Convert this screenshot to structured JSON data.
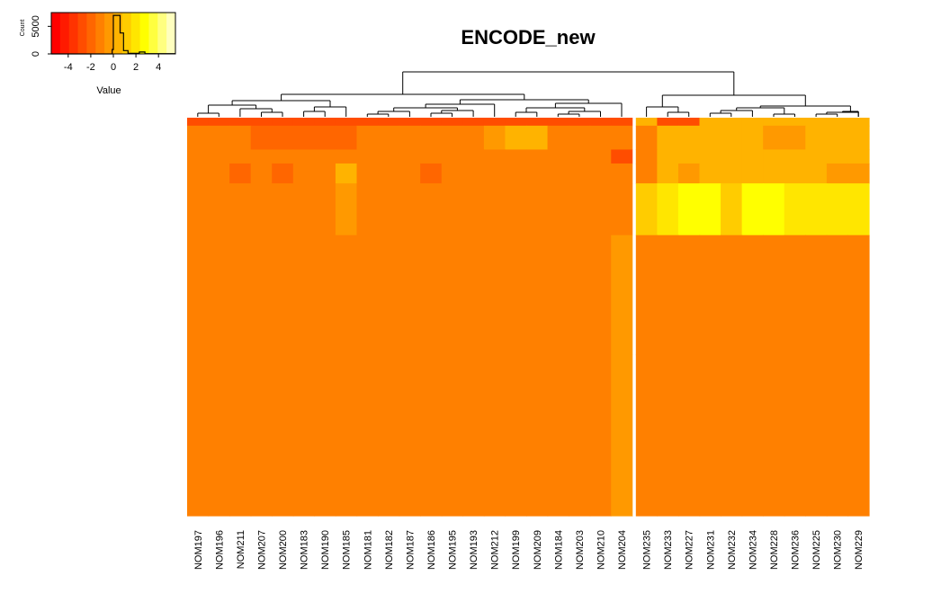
{
  "chart_data": {
    "type": "heatmap",
    "title": "ENCODE_new",
    "columns": [
      "NOM197",
      "NOM196",
      "NOM211",
      "NOM207",
      "NOM200",
      "NOM183",
      "NOM190",
      "NOM185",
      "NOM181",
      "NOM182",
      "NOM187",
      "NOM186",
      "NOM195",
      "NOM193",
      "NOM212",
      "NOM199",
      "NOM209",
      "NOM184",
      "NOM203",
      "NOM210",
      "NOM204",
      "NOM235",
      "NOM233",
      "NOM227",
      "NOM231",
      "NOM232",
      "NOM234",
      "NOM228",
      "NOM236",
      "NOM225",
      "NOM230",
      "NOM229"
    ],
    "column_split_after": "NOM204",
    "color_key": {
      "xlabel": "Value",
      "ylabel": "Count",
      "x_ticks": [
        "-4",
        "-2",
        "0",
        "2",
        "4"
      ],
      "y_ticks": [
        "0",
        "5000"
      ],
      "xlim": [
        -5.5,
        5.5
      ],
      "ylim": [
        0,
        7500
      ],
      "palette": [
        "#ff0000",
        "#ff1a00",
        "#ff3300",
        "#ff4d00",
        "#ff6600",
        "#ff8000",
        "#ff9900",
        "#ffb300",
        "#ffcc00",
        "#ffe600",
        "#ffff00",
        "#ffff40",
        "#ffff80",
        "#ffffbf"
      ],
      "histogram": [
        [
          -5.5,
          0
        ],
        [
          -0.1,
          0
        ],
        [
          -0.1,
          800
        ],
        [
          0,
          800
        ],
        [
          0,
          7000
        ],
        [
          0.6,
          7000
        ],
        [
          0.6,
          3800
        ],
        [
          0.9,
          3800
        ],
        [
          0.9,
          600
        ],
        [
          1.3,
          600
        ],
        [
          1.3,
          100
        ],
        [
          2.3,
          100
        ],
        [
          2.3,
          350
        ],
        [
          2.8,
          350
        ],
        [
          2.8,
          50
        ],
        [
          5.5,
          50
        ]
      ]
    },
    "dendrogram": [
      [
        [
          7.5,
          0.58
        ],
        [
          7.5,
          0.6
        ]
      ],
      [
        [
          6.5,
          0.54
        ],
        [
          6.5,
          0.58
        ]
      ],
      [
        [
          8,
          0.58
        ],
        [
          8,
          0.26
        ]
      ],
      [
        [
          6.5,
          0.54
        ],
        [
          6.5,
          0.42
        ]
      ],
      [
        [
          7,
          0.54
        ],
        [
          7,
          0.34
        ]
      ],
      [
        [
          6,
          0.42
        ],
        [
          6,
          0.32
        ]
      ],
      [
        [
          7,
          0.42
        ],
        [
          7,
          0.14
        ]
      ],
      [
        [
          5.5,
          0.32
        ],
        [
          5.5,
          0.18
        ]
      ],
      [
        [
          6.5,
          0.32
        ],
        [
          6.5,
          0.18
        ]
      ],
      [
        [
          5,
          0.18
        ],
        [
          5,
          0
        ]
      ],
      [
        [
          6,
          0.18
        ],
        [
          6,
          0
        ]
      ],
      [
        [
          6.5,
          0.18
        ],
        [
          6.5,
          0.1
        ]
      ],
      [
        [
          7,
          0.18
        ],
        [
          7,
          0
        ]
      ],
      [
        [
          6,
          0.1
        ],
        [
          6,
          0
        ]
      ],
      [
        [
          7,
          0.1
        ],
        [
          7,
          0
        ]
      ],
      [
        [
          1.5,
          0.46
        ],
        [
          1.5,
          0.58
        ]
      ],
      [
        [
          1.5,
          0.46
        ],
        [
          1.5,
          0.36
        ]
      ],
      [
        [
          2,
          0.46
        ],
        [
          2,
          0.34
        ]
      ],
      [
        [
          1,
          0.36
        ],
        [
          1,
          0.2
        ]
      ],
      [
        [
          3,
          0.36
        ],
        [
          3,
          0.16
        ]
      ],
      [
        [
          0.5,
          0.2
        ],
        [
          0.5,
          0.06
        ]
      ],
      [
        [
          1.5,
          0.2
        ],
        [
          1.5,
          0.06
        ]
      ],
      [
        [
          0,
          0.06
        ],
        [
          0,
          0
        ]
      ],
      [
        [
          1,
          0.06
        ],
        [
          1,
          0
        ]
      ],
      [
        [
          1,
          0.06
        ],
        [
          1,
          0
        ]
      ],
      [
        [
          2,
          0.06
        ],
        [
          2,
          0
        ]
      ],
      [
        [
          4,
          0.34
        ],
        [
          4,
          0.06
        ]
      ],
      [
        [
          3.5,
          0.06
        ],
        [
          3.5,
          0
        ]
      ],
      [
        [
          4.5,
          0.06
        ],
        [
          4.5,
          0
        ]
      ]
    ],
    "values": [
      [
        -3.0,
        -3.0,
        -3.0,
        -3.0,
        -3.0,
        -3.0,
        -3.0,
        -3.0,
        -3.0,
        -3.0,
        -3.0,
        -3.0,
        -3.0,
        -3.0,
        -3.0,
        -3.0,
        -3.0,
        -3.0,
        -3.0,
        -3.0,
        -3.0,
        0.5,
        -3.0,
        -3.0,
        0.5,
        0.5,
        0.5,
        0.5,
        0.5,
        0.5,
        0.5,
        0.5
      ],
      [
        -1.0,
        -1.0,
        -1.0,
        -2.0,
        -2.0,
        -2.0,
        -2.0,
        -2.0,
        -1.0,
        -1.0,
        -1.0,
        -1.0,
        -1.0,
        -1.5,
        -0.5,
        0.0,
        0.0,
        -1.0,
        -1.0,
        -1.0,
        -1.0,
        -1.5,
        0.5,
        0.5,
        0.5,
        0.0,
        0.0,
        -0.5,
        -0.5,
        0.5,
        0.5,
        0.5
      ],
      [
        -1.0,
        -1.0,
        -1.0,
        -1.5,
        -1.5,
        -1.5,
        -1.5,
        -1.5,
        -1.0,
        -1.0,
        -1.0,
        -1.0,
        -1.0,
        -1.5,
        -1.0,
        -1.0,
        -1.0,
        -1.0,
        -1.0,
        -1.0,
        -2.5,
        -1.0,
        0.0,
        0.0,
        0.5,
        0.0,
        0.5,
        0.0,
        0.5,
        0.5,
        0.5,
        0.0
      ],
      [
        -1.5,
        -1.0,
        -2.0,
        -1.5,
        -2.0,
        -1.0,
        -1.5,
        0.0,
        -1.0,
        -1.0,
        -1.0,
        -2.0,
        -1.5,
        -1.0,
        -1.0,
        -1.5,
        -1.0,
        -1.0,
        -1.0,
        -1.0,
        -1.0,
        -1.0,
        0.5,
        -0.5,
        0.5,
        0.0,
        0.5,
        0.5,
        0.0,
        0.5,
        -0.5,
        -0.5
      ],
      [
        -1.5,
        -1.5,
        -1.5,
        -1.0,
        -1.5,
        -1.5,
        -1.5,
        -0.5,
        -1.0,
        -1.0,
        -1.0,
        -1.5,
        -1.5,
        -1.5,
        -1.5,
        -1.0,
        -1.0,
        -1.0,
        -1.0,
        -1.0,
        -1.5,
        1.5,
        2.0,
        2.5,
        2.5,
        1.5,
        2.5,
        2.5,
        2.0,
        2.0,
        2.0,
        2.0
      ],
      [
        -1.0,
        -1.0,
        -1.0,
        -1.0,
        -1.0,
        -1.5,
        -1.0,
        -1.0,
        -1.0,
        -1.0,
        -1.0,
        -1.0,
        -1.0,
        -1.0,
        -1.0,
        -1.0,
        -1.0,
        -1.0,
        -1.0,
        -1.0,
        -0.5,
        -1.0,
        -1.0,
        -1.0,
        -1.0,
        -1.0,
        -1.0,
        -1.0,
        -1.0,
        -1.0,
        -1.0,
        -1.0
      ],
      [
        -1.0,
        -1.0,
        -1.0,
        -1.0,
        -1.0,
        -1.0,
        -1.0,
        -1.0,
        -1.0,
        -1.0,
        -1.0,
        -1.0,
        -1.0,
        -1.0,
        -1.0,
        -1.0,
        -1.0,
        -1.0,
        -1.0,
        -1.0,
        -0.5,
        -1.0,
        -1.0,
        -1.0,
        -1.0,
        -1.0,
        -1.0,
        -1.0,
        -1.0,
        -1.0,
        -1.0,
        -1.0
      ]
    ],
    "row_fractions": [
      0.02,
      0.06,
      0.035,
      0.05,
      0.13,
      0.3,
      0.405
    ]
  }
}
